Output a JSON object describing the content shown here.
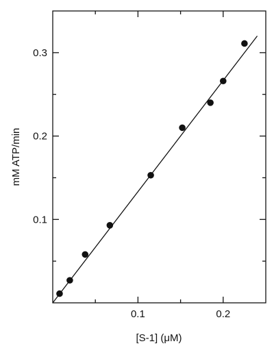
{
  "chart_data": {
    "type": "scatter",
    "title": "",
    "xlabel": "[S-1] (μM)",
    "ylabel": "mM ATP/min",
    "xlim": [
      0,
      0.25
    ],
    "ylim": [
      0,
      0.35
    ],
    "x_ticks": [
      0.1,
      0.2
    ],
    "x_tick_labels": [
      "0.1",
      "0.2"
    ],
    "y_ticks": [
      0.1,
      0.2,
      0.3
    ],
    "y_tick_labels": [
      "0.1",
      "0.2",
      "0.3"
    ],
    "x_minor_ticks": [
      0.05,
      0.1,
      0.15,
      0.2
    ],
    "y_minor_ticks": [
      0.05,
      0.1,
      0.15,
      0.2,
      0.25,
      0.3
    ],
    "grid": false,
    "series": [
      {
        "points": [
          {
            "x": 0.008,
            "y": 0.011
          },
          {
            "x": 0.02,
            "y": 0.027
          },
          {
            "x": 0.038,
            "y": 0.058
          },
          {
            "x": 0.067,
            "y": 0.093
          },
          {
            "x": 0.115,
            "y": 0.153
          },
          {
            "x": 0.152,
            "y": 0.21
          },
          {
            "x": 0.185,
            "y": 0.24
          },
          {
            "x": 0.2,
            "y": 0.266
          },
          {
            "x": 0.225,
            "y": 0.311
          }
        ]
      }
    ],
    "fit_line": {
      "x": [
        0,
        0.24
      ],
      "y": [
        0,
        0.32
      ]
    }
  }
}
